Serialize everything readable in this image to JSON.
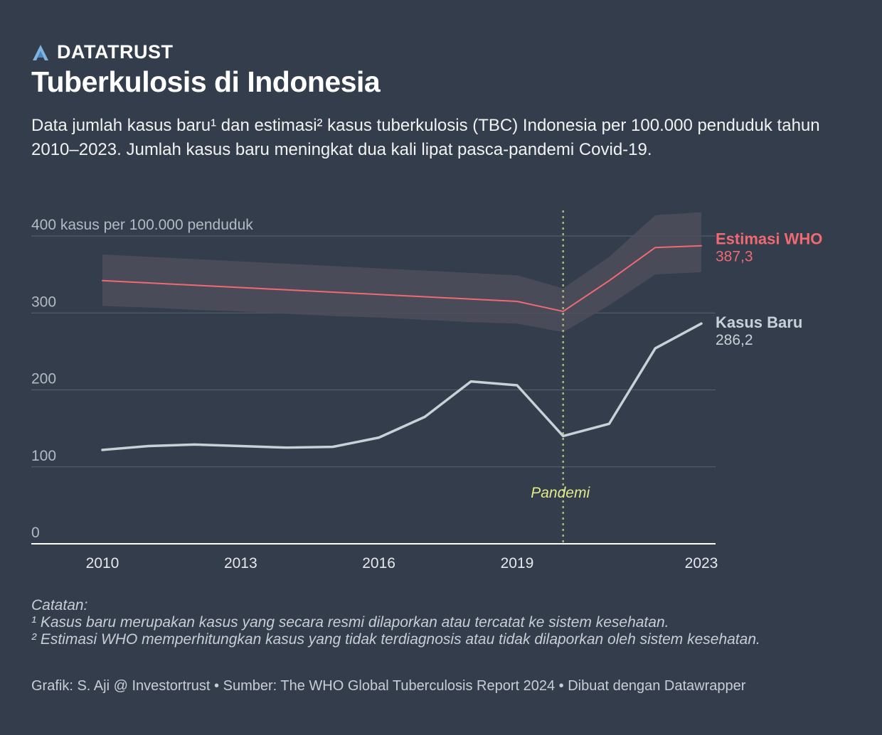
{
  "header": {
    "brand": "DATATRUST",
    "title": "Tuberkulosis di Indonesia",
    "subtitle": "Data jumlah kasus baru¹ dan estimasi² kasus tuberkulosis (TBC) Indonesia per 100.000 penduduk tahun 2010–2023. Jumlah kasus baru meningkat dua kali lipat pasca-pandemi Covid-19."
  },
  "colors": {
    "background": "#333d4c",
    "estimate": "#ef6a72",
    "cases": "#c7d2d8",
    "band": "#4d4e5c",
    "pandemic": "#aab57a",
    "pandemic_label": "#e3e98a",
    "grid": "#59626f"
  },
  "chart_data": {
    "type": "line",
    "title": "Tuberkulosis di Indonesia",
    "ylabel": "400 kasus per 100.000 penduduk",
    "ylim": [
      0,
      400
    ],
    "xlim": [
      2010,
      2023
    ],
    "y_ticks": [
      {
        "value": 400,
        "label": "400 kasus per 100.000 penduduk"
      },
      {
        "value": 300,
        "label": "300"
      },
      {
        "value": 200,
        "label": "200"
      },
      {
        "value": 100,
        "label": "100"
      },
      {
        "value": 0,
        "label": "0"
      }
    ],
    "x_ticks": [
      {
        "value": 2010,
        "label": "2010"
      },
      {
        "value": 2013,
        "label": "2013"
      },
      {
        "value": 2016,
        "label": "2016"
      },
      {
        "value": 2019,
        "label": "2019"
      },
      {
        "value": 2023,
        "label": "2023"
      }
    ],
    "x": [
      2010,
      2011,
      2012,
      2013,
      2014,
      2015,
      2016,
      2017,
      2018,
      2019,
      2020,
      2021,
      2022,
      2023
    ],
    "series": [
      {
        "name": "Estimasi WHO",
        "end_value_label": "387,3",
        "values": [
          342,
          339,
          336,
          333,
          330,
          327,
          324,
          321,
          318,
          315,
          302,
          342,
          385,
          387.3
        ],
        "lower": [
          309,
          307,
          304,
          302,
          299,
          296,
          294,
          291,
          288,
          286,
          275,
          310,
          350,
          353
        ],
        "upper": [
          376,
          373,
          370,
          367,
          364,
          361,
          358,
          355,
          352,
          349,
          332,
          373,
          427,
          431
        ]
      },
      {
        "name": "Kasus Baru",
        "end_value_label": "286,2",
        "values": [
          122,
          127,
          129,
          127,
          125,
          126,
          138,
          165,
          211,
          206,
          140,
          156,
          254,
          286.2
        ]
      }
    ],
    "annotations": [
      {
        "x": 2020,
        "label": "Pandemi"
      }
    ]
  },
  "footer": {
    "notes_title": "Catatan:",
    "note_1": "¹ Kasus baru merupakan kasus yang secara resmi dilaporkan atau tercatat ke sistem kesehatan.",
    "note_2": "² Estimasi WHO memperhitungkan kasus yang tidak terdiagnosis atau tidak dilaporkan oleh sistem kesehatan.",
    "credits": "Grafik: S. Aji @ Investortrust • Sumber: The WHO Global Tuberculosis Report 2024 • Dibuat dengan Datawrapper"
  }
}
